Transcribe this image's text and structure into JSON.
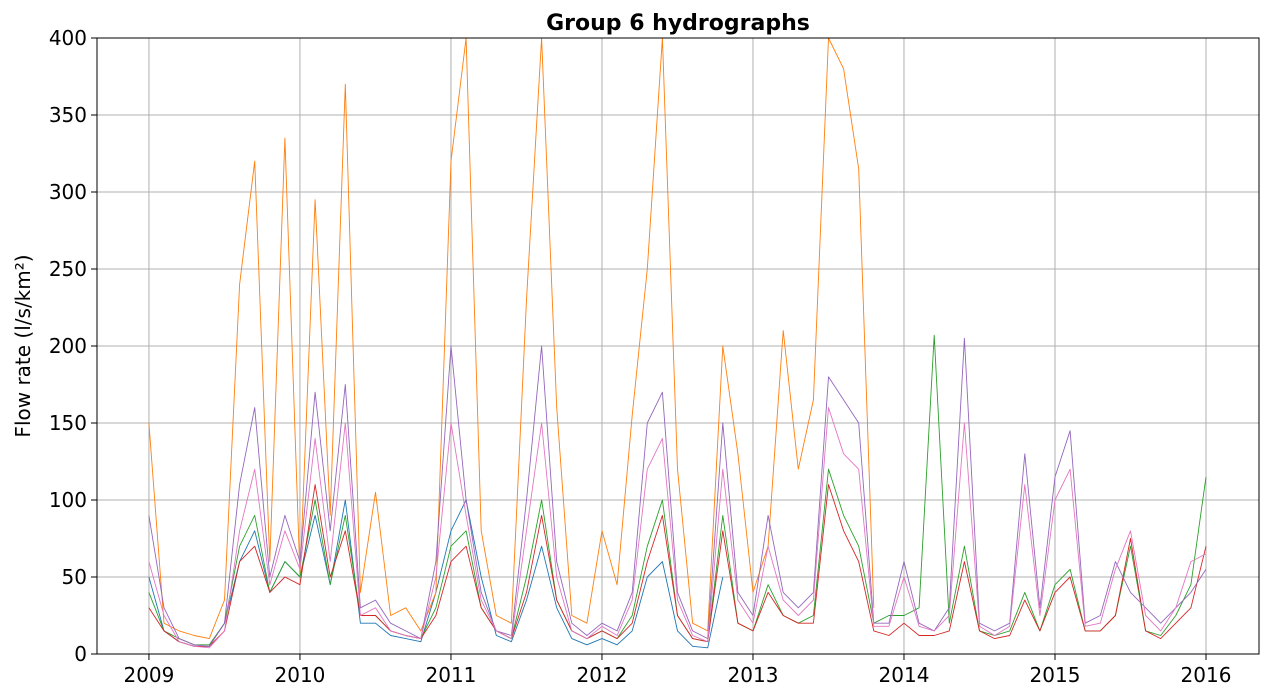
{
  "chart_data": {
    "type": "line",
    "title": "Group 6 hydrographs",
    "ylabel": "Flow rate (l/s/km²)",
    "xlim": [
      2008.656,
      2016.351
    ],
    "xticks": [
      2009,
      2010,
      2011,
      2012,
      2013,
      2014,
      2015,
      2016
    ],
    "ylim": [
      0,
      400
    ],
    "yticks": [
      0,
      50,
      100,
      150,
      200,
      250,
      300,
      350,
      400
    ],
    "grid": true,
    "x": [
      2009.0,
      2009.1,
      2009.2,
      2009.3,
      2009.4,
      2009.5,
      2009.6,
      2009.7,
      2009.8,
      2009.9,
      2010.0,
      2010.1,
      2010.2,
      2010.3,
      2010.4,
      2010.5,
      2010.6,
      2010.7,
      2010.8,
      2010.9,
      2011.0,
      2011.1,
      2011.2,
      2011.3,
      2011.4,
      2011.5,
      2011.6,
      2011.7,
      2011.8,
      2011.9,
      2012.0,
      2012.1,
      2012.2,
      2012.3,
      2012.4,
      2012.5,
      2012.6,
      2012.7,
      2012.8,
      2012.9,
      2013.0,
      2013.1,
      2013.2,
      2013.3,
      2013.4,
      2013.5,
      2013.6,
      2013.7,
      2013.8,
      2013.9,
      2014.0,
      2014.1,
      2014.2,
      2014.3,
      2014.4,
      2014.5,
      2014.6,
      2014.7,
      2014.8,
      2014.9,
      2015.0,
      2015.1,
      2015.2,
      2015.3,
      2015.4,
      2015.5,
      2015.6,
      2015.7,
      2015.8,
      2015.9,
      2016.0
    ],
    "series": [
      {
        "color": "#1f77b4",
        "values": [
          50,
          15,
          8,
          5,
          5,
          20,
          60,
          80,
          40,
          60,
          50,
          90,
          45,
          100,
          20,
          20,
          12,
          10,
          8,
          40,
          80,
          100,
          50,
          12,
          8,
          35,
          70,
          30,
          10,
          6,
          10,
          6,
          15,
          50,
          60,
          15,
          5,
          4,
          50,
          null,
          null,
          null,
          null,
          null,
          null,
          null,
          null,
          null,
          null,
          null,
          null,
          null,
          null,
          null,
          null,
          null,
          null,
          null,
          null,
          null,
          null,
          null,
          null,
          null,
          null,
          null,
          null,
          null,
          null,
          null,
          null
        ]
      },
      {
        "color": "#ff7f0e",
        "values": [
          150,
          20,
          15,
          12,
          10,
          35,
          240,
          320,
          60,
          335,
          50,
          295,
          90,
          370,
          40,
          105,
          25,
          30,
          15,
          40,
          320,
          400,
          80,
          25,
          20,
          230,
          400,
          160,
          25,
          20,
          80,
          45,
          155,
          250,
          400,
          120,
          20,
          15,
          200,
          130,
          40,
          70,
          210,
          120,
          165,
          400,
          380,
          315,
          30,
          null,
          null,
          null,
          null,
          null,
          null,
          null,
          null,
          null,
          null,
          null,
          null,
          null,
          null,
          null,
          null,
          null,
          null,
          null,
          null,
          null,
          null
        ]
      },
      {
        "color": "#2ca02c",
        "values": [
          40,
          15,
          10,
          6,
          6,
          20,
          70,
          90,
          40,
          60,
          50,
          100,
          45,
          90,
          25,
          25,
          15,
          12,
          10,
          30,
          70,
          80,
          30,
          15,
          10,
          50,
          100,
          35,
          15,
          10,
          15,
          10,
          25,
          70,
          100,
          25,
          10,
          8,
          90,
          20,
          15,
          45,
          25,
          20,
          25,
          120,
          90,
          70,
          20,
          25,
          25,
          30,
          207,
          20,
          70,
          15,
          12,
          15,
          40,
          15,
          45,
          55,
          15,
          15,
          25,
          70,
          15,
          12,
          25,
          45,
          115
        ]
      },
      {
        "color": "#d62728",
        "values": [
          30,
          15,
          8,
          5,
          5,
          15,
          60,
          70,
          40,
          50,
          45,
          110,
          50,
          80,
          25,
          25,
          15,
          12,
          10,
          25,
          60,
          70,
          30,
          15,
          10,
          40,
          90,
          35,
          15,
          10,
          15,
          10,
          20,
          60,
          90,
          25,
          10,
          8,
          80,
          20,
          15,
          40,
          25,
          20,
          20,
          110,
          80,
          60,
          15,
          12,
          20,
          12,
          12,
          15,
          60,
          15,
          10,
          12,
          35,
          15,
          40,
          50,
          15,
          15,
          25,
          75,
          15,
          10,
          20,
          30,
          70
        ]
      },
      {
        "color": "#9467bd",
        "values": [
          90,
          30,
          10,
          6,
          5,
          20,
          110,
          160,
          50,
          90,
          60,
          170,
          80,
          175,
          30,
          35,
          20,
          15,
          10,
          60,
          200,
          100,
          40,
          15,
          12,
          100,
          200,
          60,
          20,
          12,
          20,
          15,
          40,
          150,
          170,
          40,
          15,
          10,
          150,
          40,
          25,
          90,
          40,
          30,
          40,
          180,
          165,
          150,
          20,
          20,
          60,
          20,
          15,
          30,
          205,
          20,
          15,
          20,
          130,
          30,
          115,
          145,
          20,
          25,
          60,
          40,
          30,
          20,
          30,
          40,
          55
        ]
      },
      {
        "color": "#e377c2",
        "values": [
          60,
          25,
          8,
          5,
          4,
          15,
          80,
          120,
          45,
          80,
          55,
          140,
          60,
          150,
          25,
          30,
          15,
          12,
          10,
          50,
          150,
          90,
          35,
          15,
          10,
          80,
          150,
          50,
          15,
          10,
          18,
          12,
          35,
          120,
          140,
          35,
          12,
          8,
          120,
          35,
          20,
          70,
          35,
          25,
          35,
          160,
          130,
          120,
          18,
          18,
          50,
          18,
          15,
          25,
          150,
          18,
          12,
          18,
          110,
          25,
          100,
          120,
          18,
          20,
          55,
          80,
          25,
          15,
          30,
          60,
          65
        ]
      }
    ]
  }
}
